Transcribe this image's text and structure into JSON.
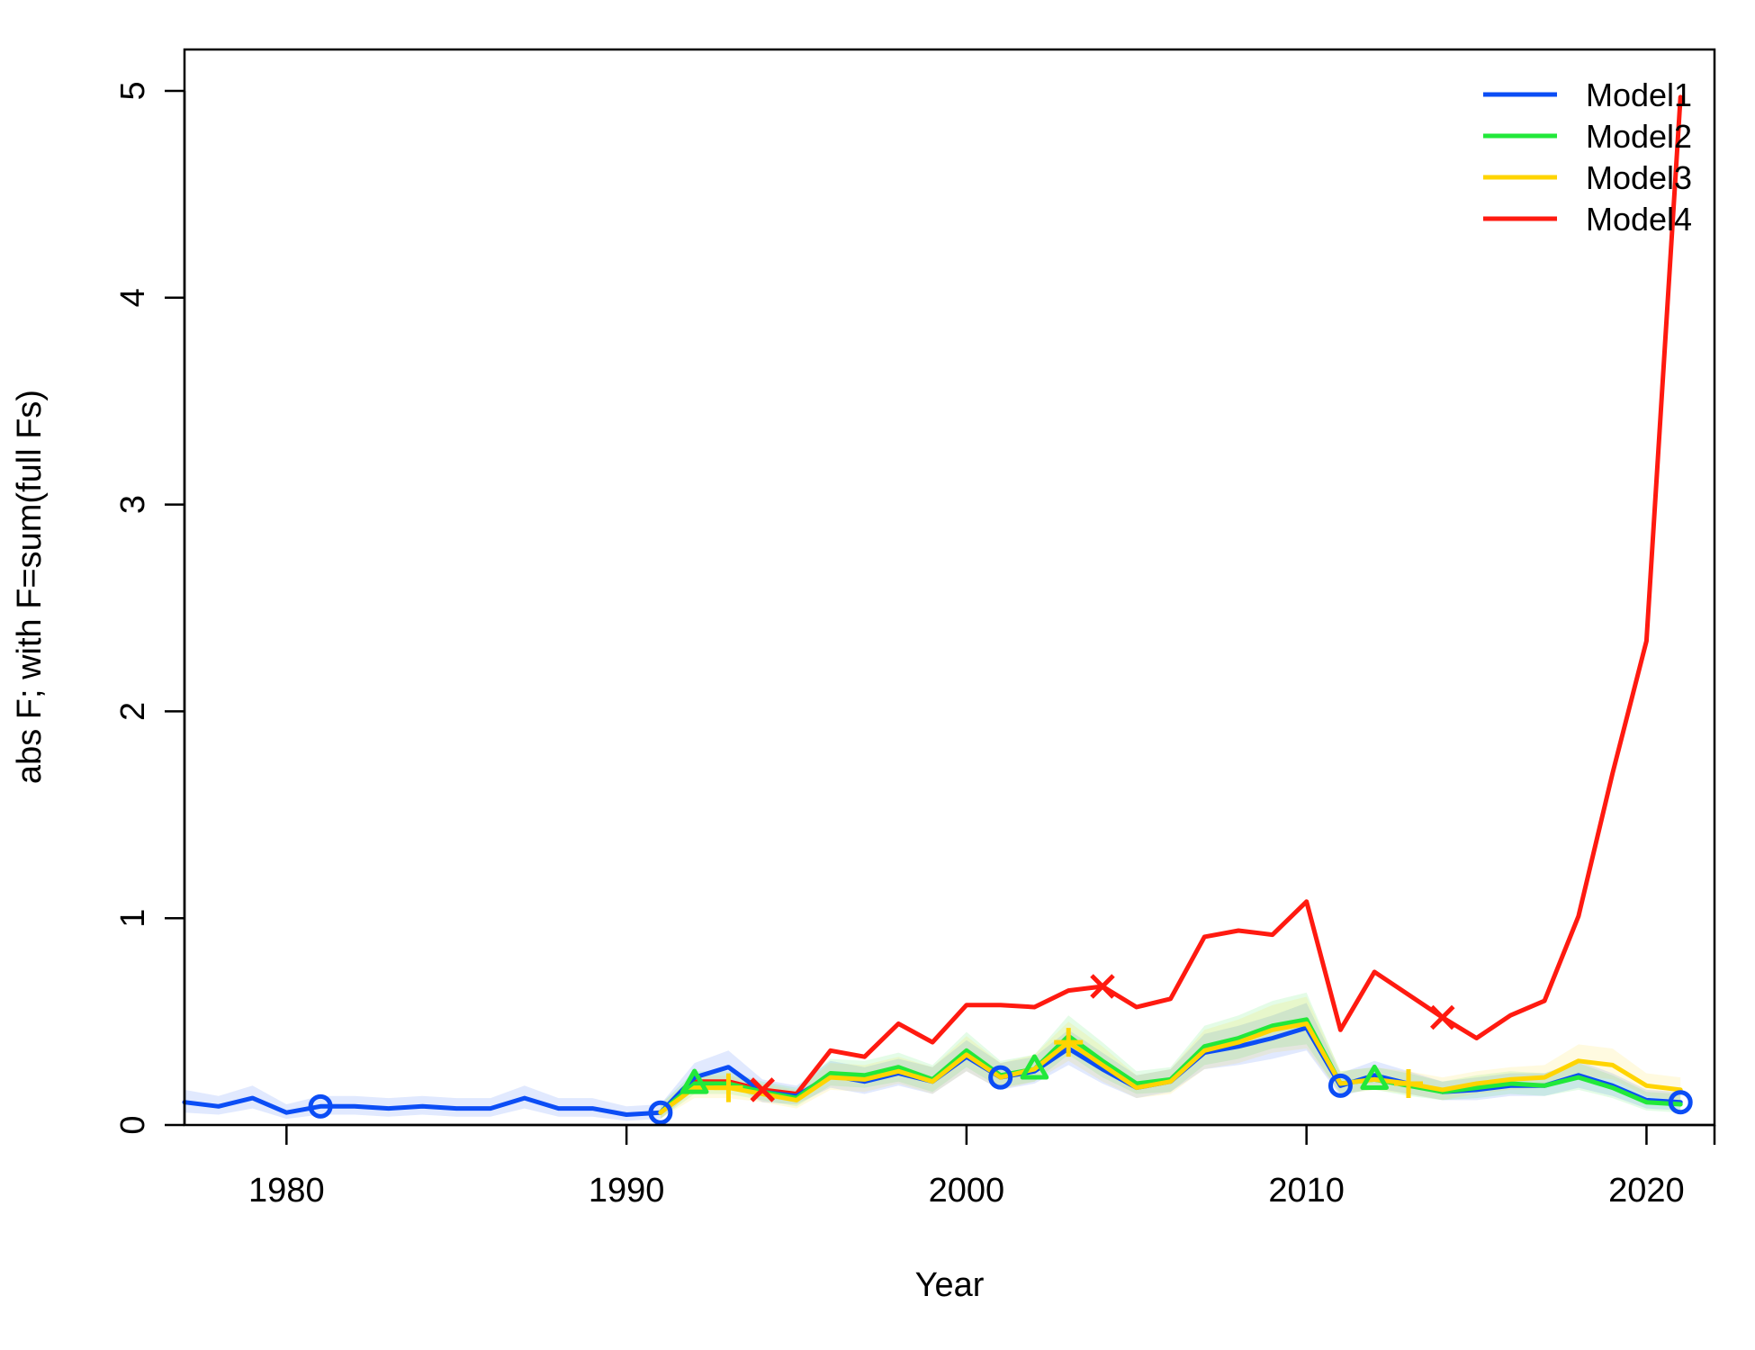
{
  "chart_data": {
    "type": "line",
    "xlabel": "Year",
    "ylabel": "abs F; with F=sum(full Fs)",
    "xlim": [
      1977,
      2022
    ],
    "ylim": [
      0,
      5.2
    ],
    "xticks": [
      1980,
      1990,
      2000,
      2010,
      2020
    ],
    "yticks": [
      0,
      1,
      2,
      3,
      4,
      5
    ],
    "grid": false,
    "legend_position": "top-right",
    "series": [
      {
        "name": "Model1",
        "color": "#0b4df5",
        "marker": "circle",
        "marker_x": [
          1981,
          1991,
          2001,
          2011,
          2021
        ],
        "x": [
          1977,
          1978,
          1979,
          1980,
          1981,
          1982,
          1983,
          1984,
          1985,
          1986,
          1987,
          1988,
          1989,
          1990,
          1991,
          1992,
          1993,
          1994,
          1995,
          1996,
          1997,
          1998,
          1999,
          2000,
          2001,
          2002,
          2003,
          2004,
          2005,
          2006,
          2007,
          2008,
          2009,
          2010,
          2011,
          2012,
          2013,
          2014,
          2015,
          2016,
          2017,
          2018,
          2019,
          2020,
          2021
        ],
        "values": [
          0.11,
          0.09,
          0.13,
          0.06,
          0.09,
          0.09,
          0.08,
          0.09,
          0.08,
          0.08,
          0.13,
          0.08,
          0.08,
          0.05,
          0.06,
          0.23,
          0.28,
          0.16,
          0.14,
          0.24,
          0.21,
          0.25,
          0.21,
          0.33,
          0.23,
          0.26,
          0.37,
          0.27,
          0.18,
          0.21,
          0.35,
          0.38,
          0.42,
          0.47,
          0.19,
          0.24,
          0.2,
          0.16,
          0.17,
          0.19,
          0.19,
          0.24,
          0.19,
          0.12,
          0.11
        ],
        "band_low": [
          0.06,
          0.05,
          0.08,
          0.03,
          0.05,
          0.05,
          0.04,
          0.05,
          0.04,
          0.04,
          0.08,
          0.04,
          0.04,
          0.02,
          0.03,
          0.17,
          0.2,
          0.11,
          0.1,
          0.18,
          0.15,
          0.19,
          0.15,
          0.26,
          0.17,
          0.2,
          0.29,
          0.2,
          0.13,
          0.16,
          0.27,
          0.29,
          0.32,
          0.36,
          0.14,
          0.18,
          0.15,
          0.12,
          0.12,
          0.14,
          0.14,
          0.18,
          0.14,
          0.08,
          0.07
        ],
        "band_high": [
          0.17,
          0.14,
          0.19,
          0.1,
          0.14,
          0.14,
          0.13,
          0.14,
          0.13,
          0.13,
          0.19,
          0.13,
          0.13,
          0.09,
          0.1,
          0.3,
          0.36,
          0.22,
          0.19,
          0.31,
          0.28,
          0.32,
          0.28,
          0.41,
          0.3,
          0.33,
          0.46,
          0.35,
          0.24,
          0.27,
          0.44,
          0.48,
          0.53,
          0.59,
          0.25,
          0.31,
          0.26,
          0.21,
          0.23,
          0.25,
          0.25,
          0.31,
          0.25,
          0.17,
          0.16
        ]
      },
      {
        "name": "Model2",
        "color": "#22e83a",
        "marker": "triangle",
        "marker_x": [
          1992,
          2002,
          2012
        ],
        "x": [
          1991,
          1992,
          1993,
          1994,
          1995,
          1996,
          1997,
          1998,
          1999,
          2000,
          2001,
          2002,
          2003,
          2004,
          2005,
          2006,
          2007,
          2008,
          2009,
          2010,
          2011,
          2012,
          2013,
          2014,
          2015,
          2016,
          2017,
          2018,
          2019,
          2020,
          2021
        ],
        "values": [
          0.06,
          0.2,
          0.2,
          0.16,
          0.13,
          0.25,
          0.24,
          0.28,
          0.22,
          0.36,
          0.24,
          0.27,
          0.43,
          0.31,
          0.2,
          0.22,
          0.38,
          0.42,
          0.48,
          0.51,
          0.2,
          0.22,
          0.19,
          0.16,
          0.18,
          0.2,
          0.19,
          0.23,
          0.18,
          0.11,
          0.1
        ],
        "band_low": [
          0.03,
          0.15,
          0.15,
          0.12,
          0.09,
          0.19,
          0.18,
          0.21,
          0.16,
          0.28,
          0.18,
          0.21,
          0.34,
          0.23,
          0.15,
          0.16,
          0.29,
          0.32,
          0.37,
          0.39,
          0.15,
          0.17,
          0.14,
          0.12,
          0.13,
          0.15,
          0.14,
          0.17,
          0.13,
          0.07,
          0.06
        ],
        "band_high": [
          0.1,
          0.26,
          0.26,
          0.21,
          0.18,
          0.32,
          0.31,
          0.35,
          0.29,
          0.45,
          0.31,
          0.34,
          0.53,
          0.4,
          0.26,
          0.28,
          0.48,
          0.53,
          0.6,
          0.64,
          0.26,
          0.28,
          0.25,
          0.21,
          0.24,
          0.26,
          0.25,
          0.3,
          0.24,
          0.16,
          0.15
        ]
      },
      {
        "name": "Model3",
        "color": "#ffd400",
        "marker": "plus",
        "marker_x": [
          1993,
          2003,
          2013
        ],
        "x": [
          1991,
          1992,
          1993,
          1994,
          1995,
          1996,
          1997,
          1998,
          1999,
          2000,
          2001,
          2002,
          2003,
          2004,
          2005,
          2006,
          2007,
          2008,
          2009,
          2010,
          2011,
          2012,
          2013,
          2014,
          2015,
          2016,
          2017,
          2018,
          2019,
          2020,
          2021
        ],
        "values": [
          0.06,
          0.18,
          0.18,
          0.15,
          0.12,
          0.23,
          0.22,
          0.26,
          0.21,
          0.34,
          0.23,
          0.27,
          0.4,
          0.29,
          0.18,
          0.21,
          0.36,
          0.4,
          0.46,
          0.49,
          0.2,
          0.22,
          0.2,
          0.17,
          0.2,
          0.22,
          0.23,
          0.31,
          0.29,
          0.19,
          0.17
        ],
        "band_low": [
          0.03,
          0.13,
          0.13,
          0.11,
          0.08,
          0.17,
          0.16,
          0.2,
          0.15,
          0.26,
          0.17,
          0.21,
          0.31,
          0.21,
          0.13,
          0.15,
          0.27,
          0.3,
          0.35,
          0.37,
          0.15,
          0.17,
          0.15,
          0.12,
          0.15,
          0.17,
          0.18,
          0.24,
          0.22,
          0.14,
          0.12
        ],
        "band_high": [
          0.1,
          0.24,
          0.24,
          0.2,
          0.17,
          0.3,
          0.29,
          0.33,
          0.28,
          0.43,
          0.3,
          0.34,
          0.5,
          0.38,
          0.24,
          0.27,
          0.46,
          0.51,
          0.58,
          0.62,
          0.26,
          0.28,
          0.26,
          0.23,
          0.26,
          0.28,
          0.29,
          0.39,
          0.37,
          0.25,
          0.23
        ]
      },
      {
        "name": "Model4",
        "color": "#ff1a10",
        "marker": "x",
        "marker_x": [
          1994,
          2004,
          2014
        ],
        "x": [
          1991,
          1992,
          1993,
          1994,
          1995,
          1996,
          1997,
          1998,
          1999,
          2000,
          2001,
          2002,
          2003,
          2004,
          2005,
          2006,
          2007,
          2008,
          2009,
          2010,
          2011,
          2012,
          2013,
          2014,
          2015,
          2016,
          2017,
          2018,
          2019,
          2020,
          2021
        ],
        "values": [
          0.06,
          0.21,
          0.21,
          0.17,
          0.15,
          0.36,
          0.33,
          0.49,
          0.4,
          0.58,
          0.58,
          0.57,
          0.65,
          0.67,
          0.57,
          0.61,
          0.91,
          0.94,
          0.92,
          1.08,
          0.46,
          0.74,
          0.63,
          0.52,
          0.42,
          0.53,
          0.6,
          1.01,
          1.7,
          2.34,
          4.97
        ]
      }
    ]
  }
}
